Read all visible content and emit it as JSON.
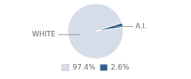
{
  "chart_data": {
    "type": "pie",
    "categories": [
      "WHITE",
      "A.I."
    ],
    "values": [
      97.4,
      2.6
    ],
    "value_labels": [
      "97.4%",
      "2.6%"
    ],
    "colors": [
      "#d6dde8",
      "#2e5f8a"
    ],
    "legend": "bottom"
  }
}
